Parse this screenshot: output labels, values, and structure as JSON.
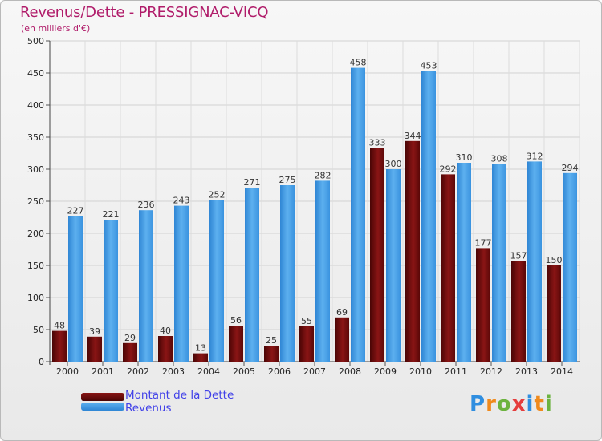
{
  "chart_data": {
    "type": "bar",
    "title": "Revenus/Dette - PRESSIGNAC-VICQ",
    "subtitle": "(en milliers d'€)",
    "categories": [
      "2000",
      "2001",
      "2002",
      "2003",
      "2004",
      "2005",
      "2006",
      "2007",
      "2008",
      "2009",
      "2010",
      "2011",
      "2012",
      "2013",
      "2014"
    ],
    "series": [
      {
        "name": "Montant de la Dette",
        "color": "#6b0a0a",
        "values": [
          48,
          39,
          29,
          40,
          13,
          56,
          25,
          55,
          69,
          333,
          344,
          292,
          177,
          157,
          150
        ]
      },
      {
        "name": "Revenus",
        "color": "#3d9be6",
        "values": [
          227,
          221,
          236,
          243,
          252,
          271,
          275,
          282,
          458,
          300,
          453,
          310,
          308,
          312,
          294
        ]
      }
    ],
    "ylim": [
      0,
      500
    ],
    "yticks": [
      0,
      50,
      100,
      150,
      200,
      250,
      300,
      350,
      400,
      450,
      500
    ],
    "grid": true,
    "legend": "bottom-left"
  },
  "legend": {
    "items": [
      {
        "label": "Montant de la Dette",
        "color": "#6b0a0a"
      },
      {
        "label": "Revenus",
        "color": "#3d9be6"
      }
    ]
  },
  "brand": {
    "letters": [
      "P",
      "r",
      "o",
      "x",
      "i",
      "t",
      "i"
    ]
  }
}
